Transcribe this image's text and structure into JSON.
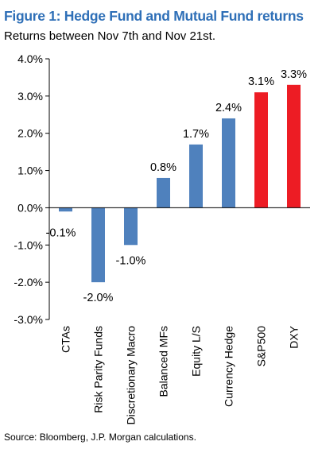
{
  "header": {
    "title": "Figure 1: Hedge Fund and Mutual Fund returns",
    "subtitle": "Returns between Nov 7th and Nov 21st."
  },
  "footer": {
    "source": "Source: Bloomberg, J.P. Morgan calculations."
  },
  "chart_data": {
    "type": "bar",
    "title": "Figure 1: Hedge Fund and Mutual Fund returns",
    "subtitle": "Returns between Nov 7th and Nov 21st.",
    "categories": [
      "CTAs",
      "Risk Parity Funds",
      "Discretionary Macro",
      "Balanced MFs",
      "Equity L/S",
      "Currency Hedge",
      "S&P500",
      "DXY"
    ],
    "values": [
      -0.1,
      -2.0,
      -1.0,
      0.8,
      1.7,
      2.4,
      3.1,
      3.3
    ],
    "data_labels": [
      "-0.1%",
      "-2.0%",
      "-1.0%",
      "0.8%",
      "1.7%",
      "2.4%",
      "3.1%",
      "3.3%"
    ],
    "bar_colors": [
      "#4f81bd",
      "#4f81bd",
      "#4f81bd",
      "#4f81bd",
      "#4f81bd",
      "#4f81bd",
      "#ed1c24",
      "#ed1c24"
    ],
    "xlabel": "",
    "ylabel": "",
    "ylim": [
      -3.0,
      4.0
    ],
    "yticks": [
      4.0,
      3.0,
      2.0,
      1.0,
      0.0,
      -1.0,
      -2.0,
      -3.0
    ],
    "ytick_labels": [
      "4.0%",
      "3.0%",
      "2.0%",
      "1.0%",
      "0.0%",
      "-1.0%",
      "-2.0%",
      "-3.0%"
    ],
    "grid": false,
    "legend": "none"
  }
}
